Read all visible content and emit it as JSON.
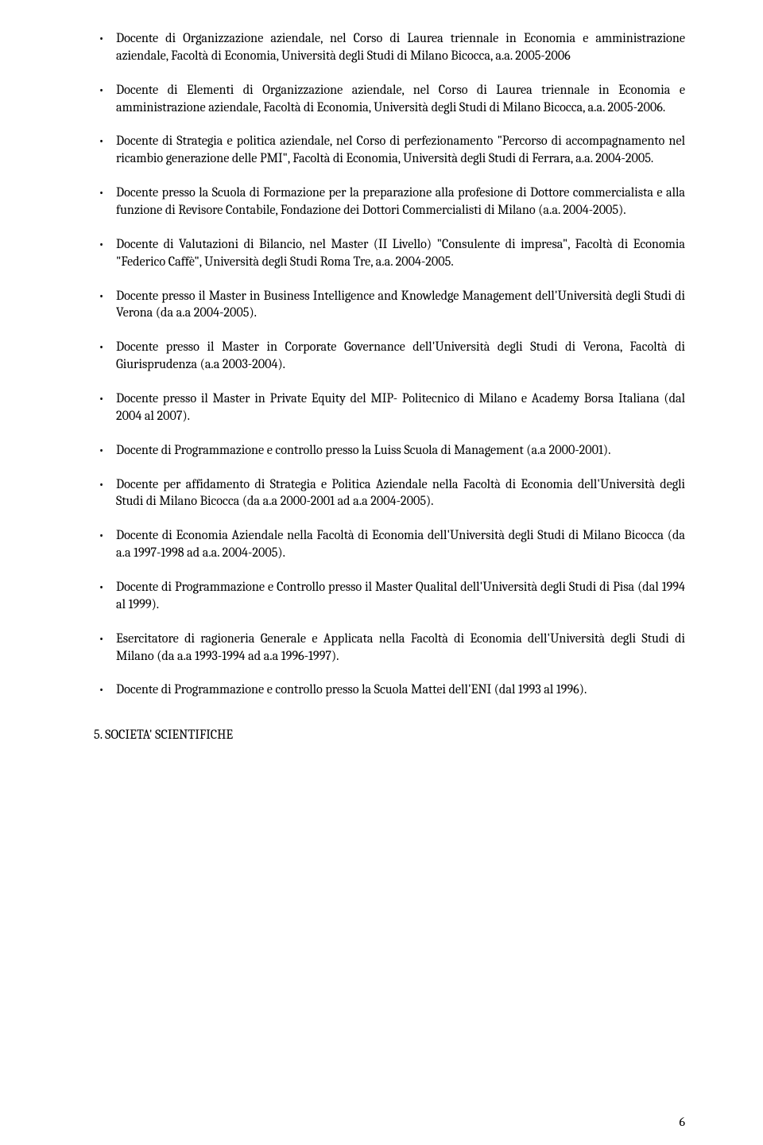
{
  "bullets": [
    "Docente di Organizzazione aziendale, nel Corso di Laurea triennale in Economia e amministrazione aziendale, Facoltà di Economia, Università degli Studi di Milano Bicocca, a.a. 2005-2006",
    "Docente di Elementi di Organizzazione aziendale, nel Corso di Laurea triennale in Economia e amministrazione aziendale, Facoltà di Economia, Università degli Studi di Milano Bicocca, a.a. 2005-2006.",
    "Docente di Strategia e politica aziendale, nel Corso di perfezionamento \"Percorso di accompagnamento nel ricambio generazione delle PMI\", Facoltà di Economia, Università degli Studi di Ferrara, a.a. 2004-2005.",
    "Docente presso la Scuola di Formazione per la preparazione alla profesione di Dottore commercialista e alla funzione di Revisore Contabile, Fondazione dei Dottori Commercialisti di Milano (a.a. 2004-2005).",
    "Docente di Valutazioni di Bilancio, nel Master (II Livello) \"Consulente di impresa\", Facoltà di Economia \"Federico Caffè\", Università degli Studi Roma Tre, a.a. 2004-2005.",
    "Docente presso il Master in Business Intelligence and Knowledge Management dell'Università degli Studi di Verona (da a.a 2004-2005).",
    "Docente presso il Master in Corporate Governance dell'Università degli Studi di Verona, Facoltà di Giurisprudenza  (a.a 2003-2004).",
    "Docente presso il Master in Private Equity del MIP- Politecnico di Milano e Academy Borsa Italiana (dal 2004 al 2007).",
    "Docente di Programmazione e controllo presso la Luiss Scuola di Management (a.a 2000-2001).",
    "Docente per affidamento di Strategia e Politica Aziendale nella Facoltà di Economia dell'Università degli Studi di Milano Bicocca (da a.a 2000-2001 ad a.a 2004-2005).",
    "Docente di Economia Aziendale nella Facoltà di Economia dell'Università degli Studi di Milano Bicocca (da a.a 1997-1998 ad a.a. 2004-2005).",
    "Docente di Programmazione e Controllo presso il Master Qualital dell'Università degli Studi di Pisa (dal 1994 al 1999).",
    "Esercitatore di ragioneria Generale e Applicata nella Facoltà di Economia dell'Università degli Studi di Milano (da a.a 1993-1994 ad a.a 1996-1997).",
    "Docente di Programmazione e controllo presso la Scuola Mattei dell'ENI (dal 1993 al 1996)."
  ],
  "section_heading": "5. SOCIETA' SCIENTIFICHE",
  "page_number": "6"
}
